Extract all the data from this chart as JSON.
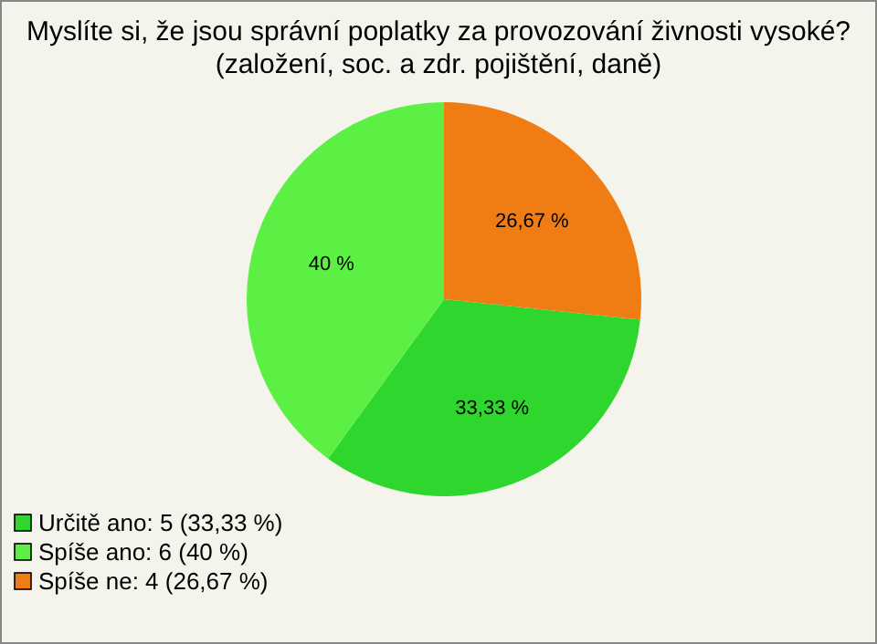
{
  "chart_data": {
    "type": "pie",
    "title": "Myslíte si, že jsou správní poplatky za provozování živnosti vysoké?\n(založení, soc. a zdr. pojištění, daně)",
    "categories": [
      "Určitě ano: 5 (33,33 %)",
      "Spíše ano: 6 (40 %)",
      "Spíše ne: 4 (26,67 %)"
    ],
    "values": [
      33.33,
      40,
      26.67
    ],
    "value_labels": [
      "33,33 %",
      "40 %",
      "26,67 %"
    ],
    "colors": [
      "#2ed62e",
      "#5cf045",
      "#f07d14"
    ],
    "legend": "bottom left"
  }
}
